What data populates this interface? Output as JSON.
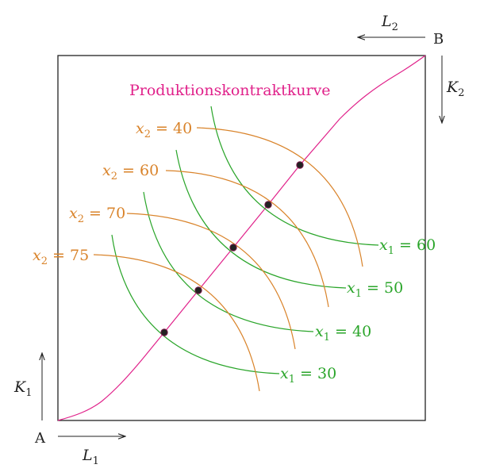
{
  "diagram": {
    "title": "Produktionskontraktkurve",
    "origin_a": "A",
    "origin_b": "B",
    "axis_labels": {
      "L1": {
        "base": "L",
        "sub": "1"
      },
      "K1": {
        "base": "K",
        "sub": "1"
      },
      "L2": {
        "base": "L",
        "sub": "2"
      },
      "K2": {
        "base": "K",
        "sub": "2"
      }
    },
    "isoquants_x1": [
      {
        "var": "x",
        "sub": "1",
        "op": " = ",
        "value": "30"
      },
      {
        "var": "x",
        "sub": "1",
        "op": " = ",
        "value": "40"
      },
      {
        "var": "x",
        "sub": "1",
        "op": " = ",
        "value": "50"
      },
      {
        "var": "x",
        "sub": "1",
        "op": " = ",
        "value": "60"
      }
    ],
    "isoquants_x2": [
      {
        "var": "x",
        "sub": "2",
        "op": " = ",
        "value": "75"
      },
      {
        "var": "x",
        "sub": "2",
        "op": " = ",
        "value": "70"
      },
      {
        "var": "x",
        "sub": "2",
        "op": " = ",
        "value": "60"
      },
      {
        "var": "x",
        "sub": "2",
        "op": " = ",
        "value": "40"
      }
    ],
    "colors": {
      "contract_curve": "#e0218a",
      "x1_isoquant": "#2aa52a",
      "x2_isoquant": "#d9832a",
      "tangency_point": "#222222",
      "frame": "#222222"
    }
  }
}
